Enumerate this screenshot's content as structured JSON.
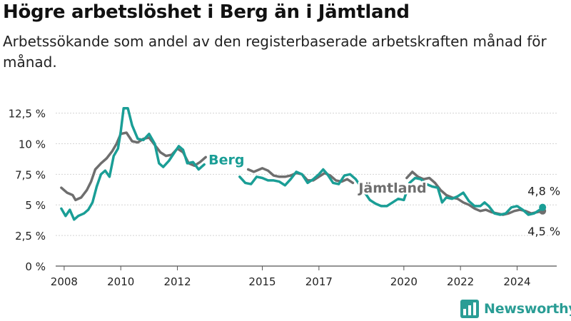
{
  "title": "Högre arbetslöshet i Berg än i Jämtland",
  "subtitle": "Arbetssökande som andel av den registerbaserade arbetskraften månad för månad.",
  "brand": {
    "name": "Newsworthy",
    "color": "#2a9d95",
    "icon": "bar-chart-logo-icon"
  },
  "chart_data": {
    "type": "line",
    "title": "",
    "xlabel": "",
    "ylabel": "",
    "xlim": [
      2007.7,
      2025.4
    ],
    "ylim": [
      0,
      13
    ],
    "yticks": [
      0,
      2.5,
      5,
      7.5,
      10,
      12.5
    ],
    "ytick_labels": [
      "0 %",
      "2,5 %",
      "5 %",
      "7,5 %",
      "10 %",
      "12,5 %"
    ],
    "xticks": [
      2008,
      2010,
      2012,
      2015,
      2017,
      2020,
      2022,
      2024
    ],
    "xtick_labels": [
      "2008",
      "2010",
      "2012",
      "2015",
      "2017",
      "2020",
      "2022",
      "2024"
    ],
    "grid": "horizontal",
    "legend": "inline labels",
    "series": [
      {
        "name": "Jämtland",
        "color": "#6e6e6e",
        "label_anchor": [
          2018.4,
          6.0
        ],
        "end_label": "4,5 %",
        "points": [
          [
            2007.9,
            6.4
          ],
          [
            2008.1,
            6.0
          ],
          [
            2008.3,
            5.8
          ],
          [
            2008.4,
            5.4
          ],
          [
            2008.6,
            5.6
          ],
          [
            2008.8,
            6.2
          ],
          [
            2008.95,
            6.9
          ],
          [
            2009.1,
            7.9
          ],
          [
            2009.3,
            8.4
          ],
          [
            2009.5,
            8.8
          ],
          [
            2009.7,
            9.4
          ],
          [
            2009.85,
            10.0
          ],
          [
            2010.0,
            10.8
          ],
          [
            2010.2,
            10.9
          ],
          [
            2010.4,
            10.2
          ],
          [
            2010.6,
            10.1
          ],
          [
            2010.8,
            10.4
          ],
          [
            2011.0,
            10.5
          ],
          [
            2011.2,
            9.9
          ],
          [
            2011.4,
            9.3
          ],
          [
            2011.6,
            9.0
          ],
          [
            2011.8,
            9.1
          ],
          [
            2012.0,
            9.6
          ],
          [
            2012.2,
            9.3
          ],
          [
            2012.4,
            8.4
          ],
          [
            2012.6,
            8.2
          ],
          [
            2012.8,
            8.5
          ],
          [
            2013.0,
            8.9
          ],
          [
            2014.5,
            7.9
          ],
          [
            2014.7,
            7.7
          ],
          [
            2014.9,
            7.9
          ],
          [
            2015.0,
            8.0
          ],
          [
            2015.2,
            7.8
          ],
          [
            2015.4,
            7.4
          ],
          [
            2015.6,
            7.3
          ],
          [
            2015.8,
            7.3
          ],
          [
            2016.0,
            7.4
          ],
          [
            2016.2,
            7.6
          ],
          [
            2016.4,
            7.5
          ],
          [
            2016.6,
            7.0
          ],
          [
            2016.8,
            7.0
          ],
          [
            2017.0,
            7.3
          ],
          [
            2017.2,
            7.6
          ],
          [
            2017.4,
            7.4
          ],
          [
            2017.6,
            7.0
          ],
          [
            2017.8,
            6.9
          ],
          [
            2018.0,
            7.1
          ],
          [
            2018.2,
            6.8
          ],
          [
            2020.1,
            7.2
          ],
          [
            2020.3,
            7.7
          ],
          [
            2020.5,
            7.3
          ],
          [
            2020.7,
            7.1
          ],
          [
            2020.9,
            7.2
          ],
          [
            2021.1,
            6.8
          ],
          [
            2021.3,
            6.2
          ],
          [
            2021.5,
            5.8
          ],
          [
            2021.7,
            5.6
          ],
          [
            2021.9,
            5.5
          ],
          [
            2022.1,
            5.2
          ],
          [
            2022.3,
            5.0
          ],
          [
            2022.5,
            4.7
          ],
          [
            2022.7,
            4.5
          ],
          [
            2022.9,
            4.6
          ],
          [
            2023.1,
            4.4
          ],
          [
            2023.3,
            4.3
          ],
          [
            2023.5,
            4.2
          ],
          [
            2023.7,
            4.3
          ],
          [
            2023.9,
            4.5
          ],
          [
            2024.1,
            4.6
          ],
          [
            2024.3,
            4.5
          ],
          [
            2024.5,
            4.3
          ],
          [
            2024.7,
            4.4
          ],
          [
            2024.9,
            4.5
          ]
        ]
      },
      {
        "name": "Berg",
        "color": "#1a9e96",
        "label_anchor": [
          2013.1,
          8.3
        ],
        "end_label": "4,8 %",
        "points": [
          [
            2007.9,
            4.7
          ],
          [
            2008.05,
            4.1
          ],
          [
            2008.2,
            4.6
          ],
          [
            2008.35,
            3.8
          ],
          [
            2008.5,
            4.1
          ],
          [
            2008.7,
            4.3
          ],
          [
            2008.85,
            4.6
          ],
          [
            2009.0,
            5.2
          ],
          [
            2009.15,
            6.5
          ],
          [
            2009.3,
            7.5
          ],
          [
            2009.45,
            7.8
          ],
          [
            2009.6,
            7.3
          ],
          [
            2009.75,
            9.0
          ],
          [
            2009.9,
            9.6
          ],
          [
            2010.0,
            11.0
          ],
          [
            2010.1,
            12.9
          ],
          [
            2010.25,
            12.9
          ],
          [
            2010.4,
            11.5
          ],
          [
            2010.6,
            10.4
          ],
          [
            2010.8,
            10.3
          ],
          [
            2011.0,
            10.8
          ],
          [
            2011.2,
            10.0
          ],
          [
            2011.35,
            8.4
          ],
          [
            2011.5,
            8.1
          ],
          [
            2011.7,
            8.6
          ],
          [
            2011.9,
            9.3
          ],
          [
            2012.05,
            9.8
          ],
          [
            2012.2,
            9.5
          ],
          [
            2012.35,
            8.4
          ],
          [
            2012.55,
            8.5
          ],
          [
            2012.75,
            7.9
          ],
          [
            2012.95,
            8.3
          ],
          [
            2014.2,
            7.3
          ],
          [
            2014.4,
            6.8
          ],
          [
            2014.6,
            6.7
          ],
          [
            2014.8,
            7.3
          ],
          [
            2015.0,
            7.2
          ],
          [
            2015.2,
            7.0
          ],
          [
            2015.4,
            7.0
          ],
          [
            2015.6,
            6.9
          ],
          [
            2015.8,
            6.6
          ],
          [
            2016.0,
            7.1
          ],
          [
            2016.2,
            7.7
          ],
          [
            2016.4,
            7.5
          ],
          [
            2016.6,
            6.8
          ],
          [
            2016.8,
            7.1
          ],
          [
            2017.0,
            7.5
          ],
          [
            2017.15,
            7.9
          ],
          [
            2017.3,
            7.5
          ],
          [
            2017.5,
            6.8
          ],
          [
            2017.7,
            6.7
          ],
          [
            2017.9,
            7.4
          ],
          [
            2018.1,
            7.5
          ],
          [
            2018.3,
            7.1
          ],
          [
            2018.8,
            5.4
          ],
          [
            2019.0,
            5.1
          ],
          [
            2019.2,
            4.9
          ],
          [
            2019.4,
            4.9
          ],
          [
            2019.6,
            5.2
          ],
          [
            2019.8,
            5.5
          ],
          [
            2020.0,
            5.4
          ],
          [
            2020.2,
            6.8
          ],
          [
            2020.4,
            7.2
          ],
          [
            2020.6,
            7.1
          ],
          [
            2020.8,
            6.7
          ],
          [
            2021.0,
            6.5
          ],
          [
            2021.2,
            6.4
          ],
          [
            2021.35,
            5.2
          ],
          [
            2021.5,
            5.6
          ],
          [
            2021.7,
            5.5
          ],
          [
            2021.9,
            5.7
          ],
          [
            2022.1,
            6.0
          ],
          [
            2022.3,
            5.3
          ],
          [
            2022.5,
            4.9
          ],
          [
            2022.7,
            4.9
          ],
          [
            2022.85,
            5.2
          ],
          [
            2023.0,
            4.9
          ],
          [
            2023.2,
            4.3
          ],
          [
            2023.4,
            4.2
          ],
          [
            2023.6,
            4.3
          ],
          [
            2023.8,
            4.8
          ],
          [
            2024.0,
            4.9
          ],
          [
            2024.2,
            4.6
          ],
          [
            2024.4,
            4.2
          ],
          [
            2024.6,
            4.3
          ],
          [
            2024.8,
            4.6
          ],
          [
            2024.9,
            4.8
          ]
        ]
      }
    ]
  }
}
